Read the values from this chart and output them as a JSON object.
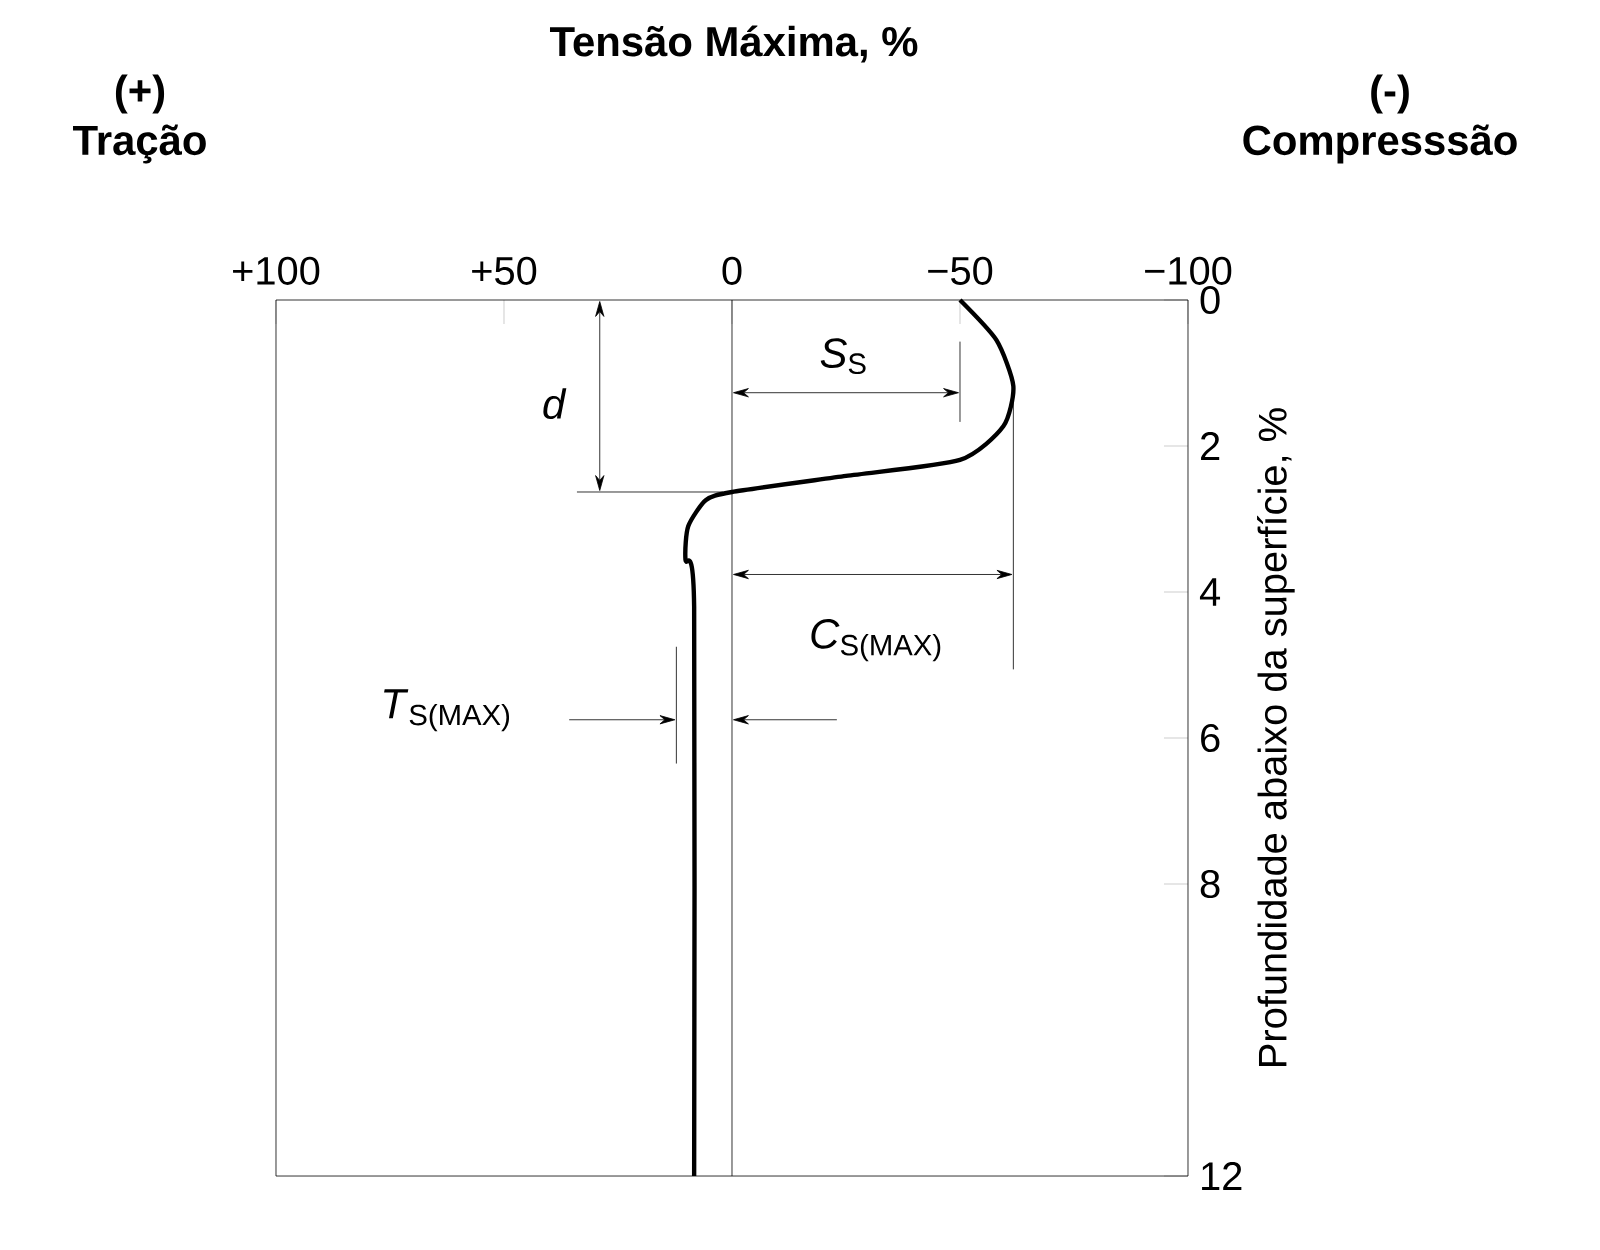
{
  "chart_data": {
    "type": "line",
    "title": "Tensão Máxima, %",
    "ylabel": "Profundidade abaixo da superfície, %",
    "xlim": [
      100,
      -100
    ],
    "xticks": [
      {
        "value": 100,
        "label": "+100"
      },
      {
        "value": 50,
        "label": "+50"
      },
      0,
      {
        "value": -50,
        "label": "−50"
      },
      {
        "value": -100,
        "label": "−100"
      }
    ],
    "ylim": [
      12,
      0
    ],
    "yticks": [
      0,
      2,
      4,
      6,
      8,
      12
    ],
    "series": [
      {
        "color": "#000000",
        "x": [
          -50,
          -58,
          -61.7,
          -59.5,
          -50,
          -25,
          0,
          5.7,
          9.6,
          10.2,
          8.3,
          8.3
        ],
        "values": [
          0,
          0.55,
          1.18,
          1.73,
          2.19,
          2.41,
          2.63,
          2.74,
          3.1,
          3.56,
          4.2,
          12
        ]
      }
    ],
    "ref_lines": [
      {
        "axis": "x",
        "value": 0
      }
    ],
    "grid": false,
    "marker": "none",
    "line_style": "solid",
    "annotations": [
      "(+)",
      "Tração",
      "(-)",
      "Compresssão",
      "*d*",
      "*S*$_{S}$",
      "*C*$_{S(MAX)}$",
      "*T*$_{S(MAX)}$"
    ]
  }
}
